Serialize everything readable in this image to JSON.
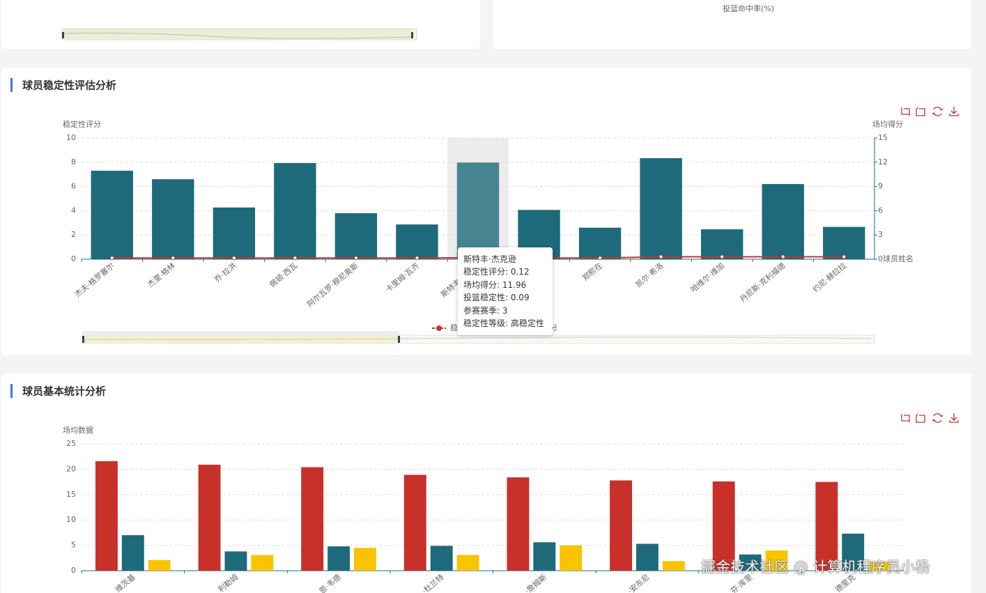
{
  "top_right_card": {
    "xlabel": "投篮命中率(%)"
  },
  "chart_data": [
    {
      "type": "bar",
      "title": "球员稳定性评估分析",
      "ylabel": "稳定性评分",
      "y2label": "场均得分",
      "xlabel": "球员姓名",
      "categories": [
        "杰夫·格罗塞尔",
        "杰里·格林",
        "乔·拉洪",
        "佩顿·西瓦",
        "阿尔瓦罗·穆尼奥斯",
        "卡里姆·瓦齐",
        "斯特丰·杰克逊",
        null,
        "郑熙在",
        "凯尔·希洛",
        "哈维尔·维加",
        "丹尼斯·克利福德",
        "约尼·赫拉拉"
      ],
      "series": [
        {
          "name": "稳定性评分",
          "type": "line",
          "color": "#c23531",
          "values": [
            0.1,
            0.1,
            0.1,
            0.1,
            0.1,
            0.1,
            0.12,
            0.1,
            0.1,
            0.2,
            0.2,
            0.2,
            0.2
          ]
        },
        {
          "name": "场均得分",
          "axis": "y2",
          "color": "#1e6a7a",
          "values": [
            10.95,
            9.9,
            6.4,
            11.9,
            5.7,
            4.3,
            11.96,
            6.1,
            3.9,
            12.5,
            3.7,
            9.3,
            4.0
          ]
        }
      ],
      "ylim": [
        0,
        10
      ],
      "yticks": [
        0,
        2,
        4,
        6,
        8,
        10
      ],
      "y2lim": [
        0,
        15
      ],
      "y2ticks": [
        0,
        3,
        6,
        9,
        12,
        15
      ],
      "grid": true
    },
    {
      "type": "bar",
      "title": "球员基本统计分析",
      "ylabel": "场均数据",
      "categories": [
        "维茨基",
        "利勒姆",
        "恩·韦德",
        "·杜兰特",
        "·詹姆斯",
        "·安东尼",
        "芬·库里",
        "德里克"
      ],
      "series": [
        {
          "color": "#c8302a",
          "values": [
            21.6,
            20.9,
            20.4,
            18.9,
            18.4,
            17.8,
            17.6,
            17.5
          ]
        },
        {
          "color": "#1e6a7a",
          "values": [
            7.0,
            3.8,
            4.8,
            4.9,
            5.6,
            5.3,
            3.2,
            7.3
          ]
        },
        {
          "color": "#f8c400",
          "values": [
            2.1,
            3.1,
            4.5,
            3.1,
            5.0,
            1.9,
            4.0,
            1.8
          ]
        }
      ],
      "ylim": [
        0,
        25
      ],
      "yticks": [
        0,
        5,
        10,
        15,
        20,
        25
      ],
      "grid": true
    }
  ],
  "tooltip": {
    "title": "斯特丰·杰克逊",
    "rows": [
      "稳定性评分: 0.12",
      "场均得分: 11.96",
      "投篮稳定性: 0.09",
      "参赛赛季: 3",
      "稳定性等级: 高稳定性"
    ]
  },
  "watermark": "掘金技术社区 @ 计算机程序员小杨"
}
